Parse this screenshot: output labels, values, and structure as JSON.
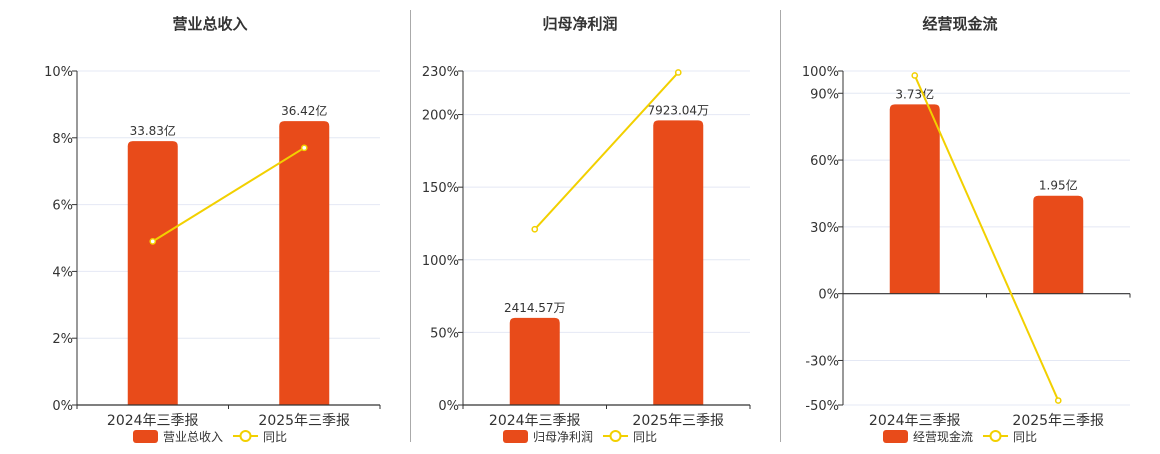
{
  "colors": {
    "bar": "#e84b1a",
    "line": "#f2d000",
    "grid": "#e4e8f4",
    "axis": "#333333",
    "text": "#333333"
  },
  "chart_data": [
    {
      "type": "bar",
      "title": "营业总收入",
      "categories": [
        "2024年三季报",
        "2025年三季报"
      ],
      "bar_values": [
        7.9,
        8.5
      ],
      "bar_labels": [
        "33.83亿",
        "36.42亿"
      ],
      "line_values": [
        4.9,
        7.7
      ],
      "ylim": [
        0,
        10
      ],
      "yticks": [
        0,
        2,
        4,
        6,
        8,
        10
      ],
      "ytick_labels": [
        "0%",
        "2%",
        "4%",
        "6%",
        "8%",
        "10%"
      ],
      "legend": {
        "bar": "营业总收入",
        "line": "同比"
      },
      "legend_position": "bottom-center",
      "grid": true
    },
    {
      "type": "bar",
      "title": "归母净利润",
      "categories": [
        "2024年三季报",
        "2025年三季报"
      ],
      "bar_values": [
        60,
        196
      ],
      "bar_labels": [
        "2414.57万",
        "7923.04万"
      ],
      "line_values": [
        121,
        229
      ],
      "ylim": [
        0,
        230
      ],
      "yticks": [
        0,
        50,
        100,
        150,
        200,
        230
      ],
      "ytick_labels": [
        "0%",
        "50%",
        "100%",
        "150%",
        "200%",
        "230%"
      ],
      "legend": {
        "bar": "归母净利润",
        "line": "同比"
      },
      "legend_position": "bottom-center",
      "grid": true
    },
    {
      "type": "bar",
      "title": "经营现金流",
      "categories": [
        "2024年三季报",
        "2025年三季报"
      ],
      "bar_values": [
        85,
        44
      ],
      "bar_labels": [
        "3.73亿",
        "1.95亿"
      ],
      "line_values": [
        98,
        -48
      ],
      "ylim": [
        -50,
        100
      ],
      "yticks": [
        -50,
        -30,
        0,
        30,
        60,
        90,
        100
      ],
      "ytick_labels": [
        "-50%",
        "-30%",
        "0%",
        "30%",
        "60%",
        "90%",
        "100%"
      ],
      "legend": {
        "bar": "经营现金流",
        "line": "同比"
      },
      "legend_position": "bottom-center",
      "grid": true
    }
  ]
}
